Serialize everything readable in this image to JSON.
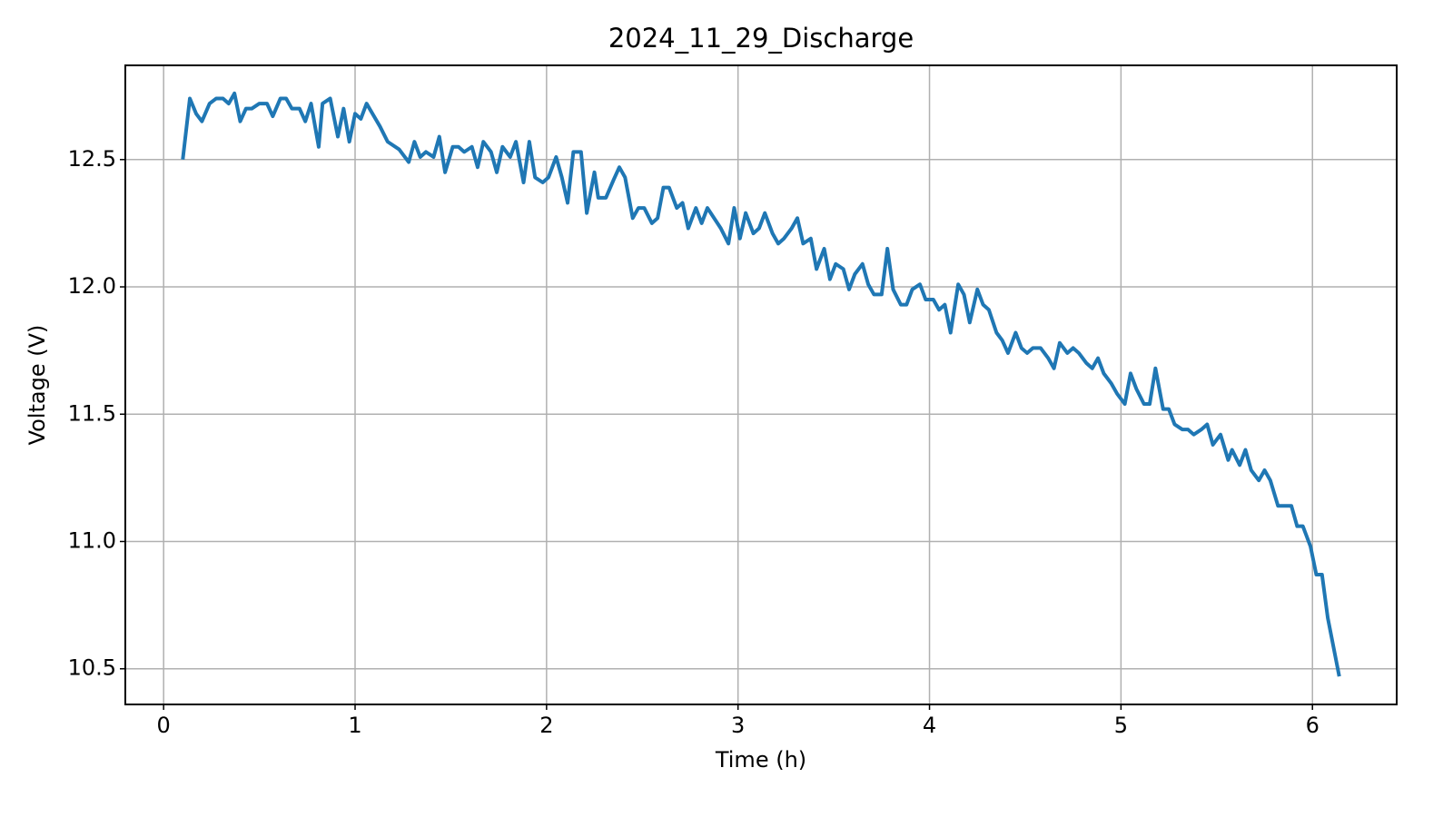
{
  "chart_data": {
    "type": "line",
    "title": "2024_11_29_Discharge",
    "x_label": "Time (h)",
    "y_label": "Voltage (V)",
    "x": [
      0.1,
      0.137,
      0.17,
      0.2,
      0.24,
      0.275,
      0.31,
      0.34,
      0.37,
      0.4,
      0.43,
      0.46,
      0.5,
      0.54,
      0.57,
      0.61,
      0.64,
      0.67,
      0.71,
      0.74,
      0.77,
      0.81,
      0.83,
      0.87,
      0.91,
      0.94,
      0.97,
      1.0,
      1.03,
      1.06,
      1.13,
      1.17,
      1.23,
      1.28,
      1.31,
      1.34,
      1.37,
      1.41,
      1.44,
      1.47,
      1.51,
      1.54,
      1.57,
      1.61,
      1.64,
      1.67,
      1.71,
      1.74,
      1.77,
      1.81,
      1.84,
      1.88,
      1.91,
      1.94,
      1.98,
      2.01,
      2.05,
      2.08,
      2.11,
      2.14,
      2.18,
      2.21,
      2.25,
      2.27,
      2.31,
      2.35,
      2.38,
      2.41,
      2.45,
      2.48,
      2.51,
      2.55,
      2.58,
      2.61,
      2.64,
      2.68,
      2.71,
      2.74,
      2.78,
      2.81,
      2.84,
      2.91,
      2.95,
      2.98,
      3.01,
      3.04,
      3.08,
      3.11,
      3.14,
      3.18,
      3.21,
      3.24,
      3.28,
      3.31,
      3.34,
      3.38,
      3.41,
      3.45,
      3.48,
      3.51,
      3.55,
      3.58,
      3.61,
      3.65,
      3.68,
      3.71,
      3.75,
      3.78,
      3.81,
      3.85,
      3.88,
      3.91,
      3.95,
      3.98,
      4.02,
      4.05,
      4.08,
      4.11,
      4.15,
      4.18,
      4.21,
      4.25,
      4.28,
      4.31,
      4.35,
      4.38,
      4.41,
      4.45,
      4.48,
      4.51,
      4.54,
      4.58,
      4.62,
      4.65,
      4.68,
      4.72,
      4.75,
      4.78,
      4.82,
      4.85,
      4.88,
      4.91,
      4.95,
      4.98,
      5.02,
      5.05,
      5.08,
      5.12,
      5.15,
      5.18,
      5.22,
      5.25,
      5.28,
      5.32,
      5.35,
      5.38,
      5.42,
      5.45,
      5.48,
      5.52,
      5.56,
      5.58,
      5.62,
      5.65,
      5.68,
      5.72,
      5.75,
      5.78,
      5.82,
      5.85,
      5.89,
      5.92,
      5.95,
      5.99,
      6.02,
      6.05,
      6.08,
      6.14
    ],
    "series": [
      {
        "name": "Voltage",
        "color": "#1f77b4",
        "values": [
          12.5,
          12.74,
          12.68,
          12.65,
          12.72,
          12.74,
          12.74,
          12.72,
          12.76,
          12.65,
          12.7,
          12.7,
          12.72,
          12.72,
          12.67,
          12.74,
          12.74,
          12.7,
          12.7,
          12.65,
          12.72,
          12.55,
          12.72,
          12.74,
          12.59,
          12.7,
          12.57,
          12.68,
          12.66,
          12.72,
          12.63,
          12.57,
          12.54,
          12.49,
          12.57,
          12.51,
          12.53,
          12.51,
          12.59,
          12.45,
          12.55,
          12.55,
          12.53,
          12.55,
          12.47,
          12.57,
          12.53,
          12.45,
          12.55,
          12.51,
          12.57,
          12.41,
          12.57,
          12.43,
          12.41,
          12.43,
          12.51,
          12.43,
          12.33,
          12.53,
          12.53,
          12.29,
          12.45,
          12.35,
          12.35,
          12.42,
          12.47,
          12.43,
          12.27,
          12.31,
          12.31,
          12.25,
          12.27,
          12.39,
          12.39,
          12.31,
          12.33,
          12.23,
          12.31,
          12.25,
          12.31,
          12.23,
          12.17,
          12.31,
          12.19,
          12.29,
          12.21,
          12.23,
          12.29,
          12.21,
          12.17,
          12.19,
          12.23,
          12.27,
          12.17,
          12.19,
          12.07,
          12.15,
          12.03,
          12.09,
          12.07,
          11.99,
          12.05,
          12.09,
          12.01,
          11.97,
          11.97,
          12.15,
          11.99,
          11.93,
          11.93,
          11.99,
          12.01,
          11.95,
          11.95,
          11.91,
          11.93,
          11.82,
          12.01,
          11.97,
          11.86,
          11.99,
          11.93,
          11.91,
          11.82,
          11.79,
          11.74,
          11.82,
          11.76,
          11.74,
          11.76,
          11.76,
          11.72,
          11.68,
          11.78,
          11.74,
          11.76,
          11.74,
          11.7,
          11.68,
          11.72,
          11.66,
          11.62,
          11.58,
          11.54,
          11.66,
          11.6,
          11.54,
          11.54,
          11.68,
          11.52,
          11.52,
          11.46,
          11.44,
          11.44,
          11.42,
          11.44,
          11.46,
          11.38,
          11.42,
          11.32,
          11.36,
          11.3,
          11.36,
          11.28,
          11.24,
          11.28,
          11.24,
          11.14,
          11.14,
          11.14,
          11.06,
          11.06,
          10.98,
          10.87,
          10.87,
          10.7,
          10.47
        ]
      }
    ],
    "xlim": [
      -0.2,
      6.44
    ],
    "ylim": [
      10.36,
      12.87
    ],
    "xticks": [
      0,
      1,
      2,
      3,
      4,
      5,
      6
    ],
    "yticks": [
      10.5,
      {
        "value": 11,
        "label": "11.0"
      },
      11.5,
      {
        "value": 12,
        "label": "12.0"
      },
      12.5
    ],
    "grid": true
  }
}
